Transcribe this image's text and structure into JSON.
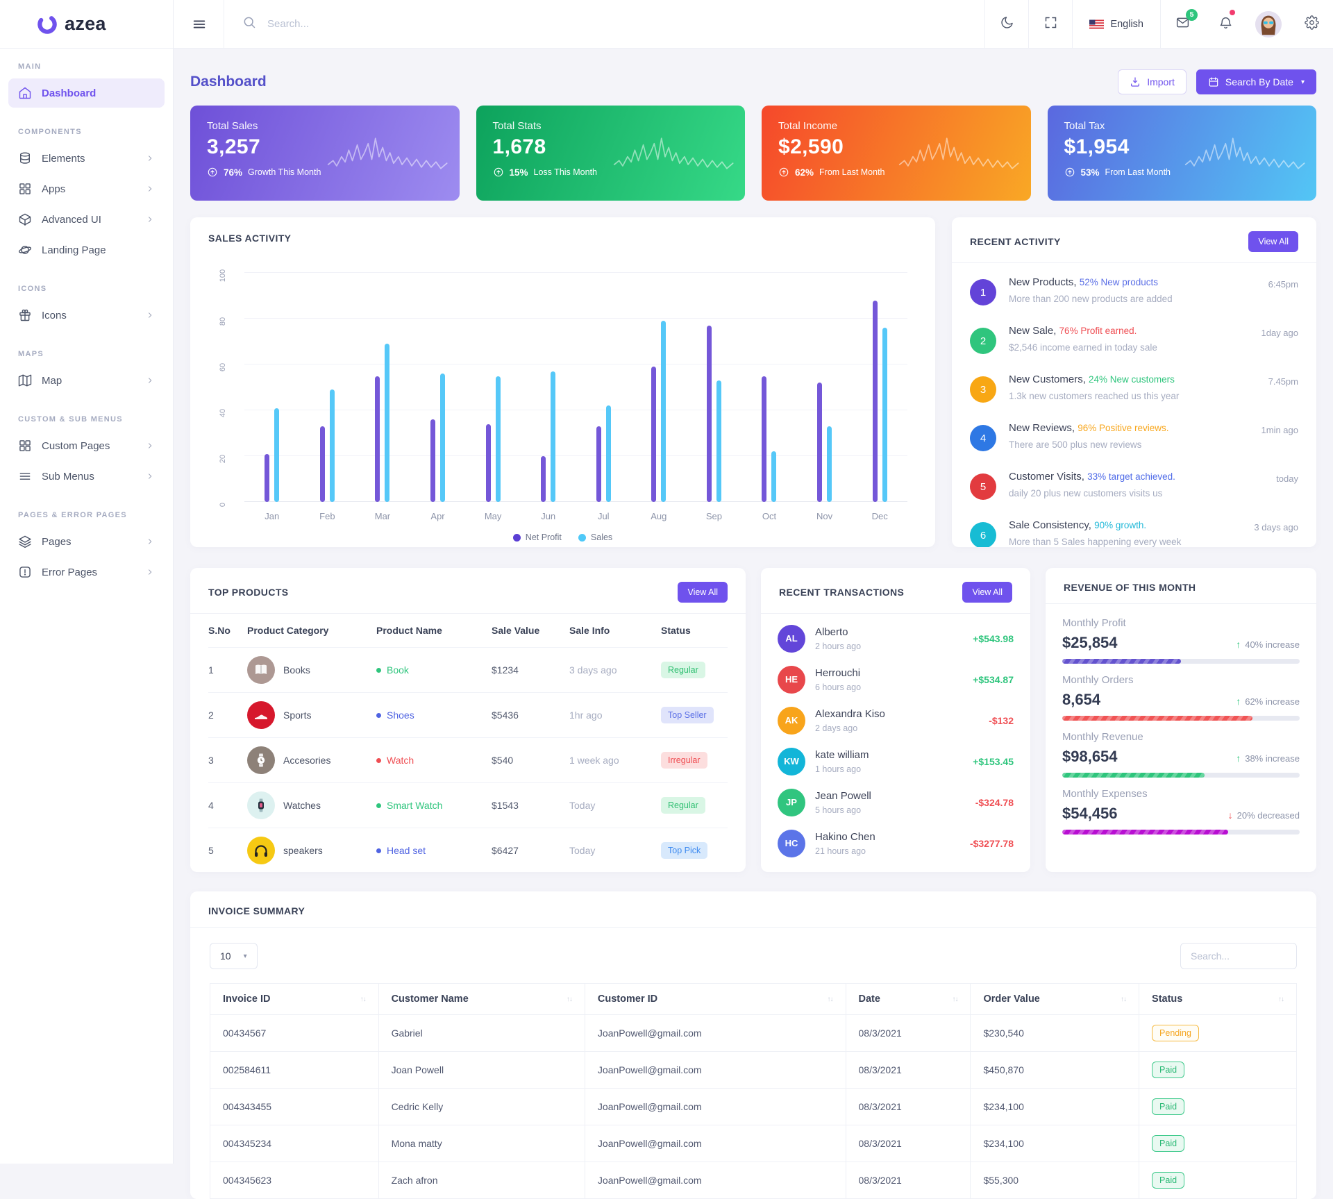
{
  "brand": {
    "name": "azea"
  },
  "header": {
    "search_placeholder": "Search...",
    "language": "English",
    "mail_badge": "5"
  },
  "page": {
    "title": "Dashboard",
    "import_label": "Import",
    "search_by_date_label": "Search By Date"
  },
  "stat_cards": [
    {
      "label": "Total Sales",
      "value": "3,257",
      "percent": "76%",
      "note": "Growth This Month",
      "gradient": [
        "#6e50d8",
        "#9d8cf0"
      ]
    },
    {
      "label": "Total Stats",
      "value": "1,678",
      "percent": "15%",
      "note": "Loss This Month",
      "gradient": [
        "#0da25c",
        "#36d987"
      ]
    },
    {
      "label": "Total Income",
      "value": "$2,590",
      "percent": "62%",
      "note": "From Last Month",
      "gradient": [
        "#f5482b",
        "#f9a825"
      ]
    },
    {
      "label": "Total Tax",
      "value": "$1,954",
      "percent": "53%",
      "note": "From Last Month",
      "gradient": [
        "#5a68df",
        "#53c6f5"
      ]
    }
  ],
  "sales_activity": {
    "title": "SALES ACTIVITY",
    "chart_data": {
      "type": "bar",
      "categories": [
        "Jan",
        "Feb",
        "Mar",
        "Apr",
        "May",
        "Jun",
        "Jul",
        "Aug",
        "Sep",
        "Oct",
        "Nov",
        "Dec"
      ],
      "series": [
        {
          "name": "Net Profit",
          "color": "#7457d8",
          "legend_color": "#5b3fd4",
          "values": [
            21,
            33,
            55,
            36,
            34,
            20,
            33,
            59,
            77,
            55,
            52,
            88
          ]
        },
        {
          "name": "Sales",
          "color": "#55c8f8",
          "legend_color": "#4fc9f8",
          "values": [
            41,
            49,
            69,
            56,
            55,
            57,
            42,
            79,
            53,
            22,
            33,
            76
          ]
        }
      ],
      "ylim": [
        0,
        100
      ],
      "yticks": [
        0,
        20,
        40,
        60,
        80,
        100
      ],
      "grid": true,
      "legend_position": "bottom"
    }
  },
  "recent_activity": {
    "title": "RECENT ACTIVITY",
    "view_all": "View All",
    "items": [
      {
        "num": "1",
        "color": "#6343d8",
        "title": "New Products,",
        "highlight": "52% New products",
        "highlight_color": "#5b6fe6",
        "desc": "More than 200 new products are added",
        "time": "6:45pm"
      },
      {
        "num": "2",
        "color": "#2fc57d",
        "title": "New Sale,",
        "highlight": "76% Profit earned.",
        "highlight_color": "#ef4e53",
        "desc": "$2,546 income earned in today sale",
        "time": "1day ago"
      },
      {
        "num": "3",
        "color": "#f8a714",
        "title": "New Customers,",
        "highlight": "24% New customers",
        "highlight_color": "#2fc57d",
        "desc": "1.3k new customers reached us this year",
        "time": "7.45pm"
      },
      {
        "num": "4",
        "color": "#2e78e4",
        "title": "New Reviews,",
        "highlight": "96% Positive reviews.",
        "highlight_color": "#f8a61b",
        "desc": "There are 500 plus new reviews",
        "time": "1min ago"
      },
      {
        "num": "5",
        "color": "#e23b3f",
        "title": "Customer Visits,",
        "highlight": "33% target achieved.",
        "highlight_color": "#4f6be8",
        "desc": "daily 20 plus new customers visits us",
        "time": "today"
      },
      {
        "num": "6",
        "color": "#17bcd4",
        "title": "Sale Consistency,",
        "highlight": "90% growth.",
        "highlight_color": "#21b8d8",
        "desc": "More than 5 Sales happening every week",
        "time": "3 days ago"
      }
    ]
  },
  "top_products": {
    "title": "TOP PRODUCTS",
    "view_all": "View All",
    "columns": [
      "S.No",
      "Product Category",
      "Product Name",
      "Sale Value",
      "Sale Info",
      "Status"
    ],
    "rows": [
      {
        "sno": "1",
        "category": "Books",
        "image": "book",
        "image_bg": "#ad9893",
        "name": "Book",
        "name_color": "#2fc57d",
        "value": "$1234",
        "info": "3 days ago",
        "status": "Regular",
        "status_color": "#2fbf71",
        "status_bg": "#d9f6e5"
      },
      {
        "sno": "2",
        "category": "Sports",
        "image": "shoe",
        "image_bg": "#d6182c",
        "name": "Shoes",
        "name_color": "#4f63e2",
        "value": "$5436",
        "info": "1hr ago",
        "status": "Top Seller",
        "status_color": "#5b6fe6",
        "status_bg": "#e0e4fb"
      },
      {
        "sno": "3",
        "category": "Accesories",
        "image": "watch",
        "image_bg": "#8d8178",
        "name": "Watch",
        "name_color": "#ef4e53",
        "value": "$540",
        "info": "1 week ago",
        "status": "Irregular",
        "status_color": "#ef4e53",
        "status_bg": "#fcdede"
      },
      {
        "sno": "4",
        "category": "Watches",
        "image": "smartwatch",
        "image_bg": "#ddf1f0",
        "name": "Smart Watch",
        "name_color": "#2fc57d",
        "value": "$1543",
        "info": "Today",
        "status": "Regular",
        "status_color": "#2fbf71",
        "status_bg": "#d9f6e5"
      },
      {
        "sno": "5",
        "category": "speakers",
        "image": "headphones",
        "image_bg": "#f6c913",
        "name": "Head set",
        "name_color": "#4f63e2",
        "value": "$6427",
        "info": "Today",
        "status": "Top Pick",
        "status_color": "#3d8af0",
        "status_bg": "#d8e9fc"
      }
    ]
  },
  "recent_transactions": {
    "title": "RECENT TRANSACTIONS",
    "view_all": "View All",
    "items": [
      {
        "initials": "AL",
        "color": "#6246d9",
        "name": "Alberto",
        "time": "2 hours ago",
        "amount": "+$543.98",
        "amount_color": "#2fc57d"
      },
      {
        "initials": "HE",
        "color": "#e8474b",
        "name": "Herrouchi",
        "time": "6 hours ago",
        "amount": "+$534.87",
        "amount_color": "#2fc57d"
      },
      {
        "initials": "AK",
        "color": "#f8a41b",
        "name": "Alexandra Kiso",
        "time": "2 days ago",
        "amount": "-$132",
        "amount_color": "#ef4e53"
      },
      {
        "initials": "KW",
        "color": "#12b5d8",
        "name": "kate william",
        "time": "1 hours ago",
        "amount": "+$153.45",
        "amount_color": "#2fc57d"
      },
      {
        "initials": "JP",
        "color": "#30c57f",
        "name": "Jean Powell",
        "time": "5 hours ago",
        "amount": "-$324.78",
        "amount_color": "#ef4e53"
      },
      {
        "initials": "HC",
        "color": "#5b74e8",
        "name": "Hakino Chen",
        "time": "21 hours ago",
        "amount": "-$3277.78",
        "amount_color": "#ef4e53"
      }
    ]
  },
  "revenue_month": {
    "title": "REVENUE OF THIS MONTH",
    "rows": [
      {
        "label": "Monthly Profit",
        "value": "$25,854",
        "change": "40% increase",
        "direction": "up",
        "arrow_color": "#2fc57d",
        "bar_color": "#6352ce",
        "percent": 50
      },
      {
        "label": "Monthly Orders",
        "value": "8,654",
        "change": "62% increase",
        "direction": "up",
        "arrow_color": "#2fc57d",
        "bar_color": "#f05455",
        "percent": 80
      },
      {
        "label": "Monthly Revenue",
        "value": "$98,654",
        "change": "38% increase",
        "direction": "up",
        "arrow_color": "#2fc57d",
        "bar_color": "#2ec57c",
        "percent": 60
      },
      {
        "label": "Monthly Expenses",
        "value": "$54,456",
        "change": "20% decreased",
        "direction": "down",
        "arrow_color": "#ef4e53",
        "bar_color": "#b80ed2",
        "percent": 70
      }
    ]
  },
  "invoice_summary": {
    "title": "INVOICE SUMMARY",
    "page_size": "10",
    "search_placeholder": "Search...",
    "columns": [
      "Invoice ID",
      "Customer Name",
      "Customer ID",
      "Date",
      "Order Value",
      "Status"
    ],
    "rows": [
      {
        "invoice_id": "00434567",
        "customer_name": "Gabriel",
        "customer_id": "JoanPowell@gmail.com",
        "date": "08/3/2021",
        "order_value": "$230,540",
        "status": "Pending"
      },
      {
        "invoice_id": "002584611",
        "customer_name": "Joan Powell",
        "customer_id": "JoanPowell@gmail.com",
        "date": "08/3/2021",
        "order_value": "$450,870",
        "status": "Paid"
      },
      {
        "invoice_id": "004343455",
        "customer_name": "Cedric Kelly",
        "customer_id": "JoanPowell@gmail.com",
        "date": "08/3/2021",
        "order_value": "$234,100",
        "status": "Paid"
      },
      {
        "invoice_id": "004345234",
        "customer_name": "Mona matty",
        "customer_id": "JoanPowell@gmail.com",
        "date": "08/3/2021",
        "order_value": "$234,100",
        "status": "Paid"
      },
      {
        "invoice_id": "004345623",
        "customer_name": "Zach afron",
        "customer_id": "JoanPowell@gmail.com",
        "date": "08/3/2021",
        "order_value": "$55,300",
        "status": "Paid"
      }
    ],
    "status_styles": {
      "Pending": {
        "color": "#f5a623",
        "bg": "#fffdf6",
        "border": "#f6b93f"
      },
      "Paid": {
        "color": "#28b873",
        "bg": "#e9f9f1",
        "border": "#3cc98a"
      }
    }
  }
}
